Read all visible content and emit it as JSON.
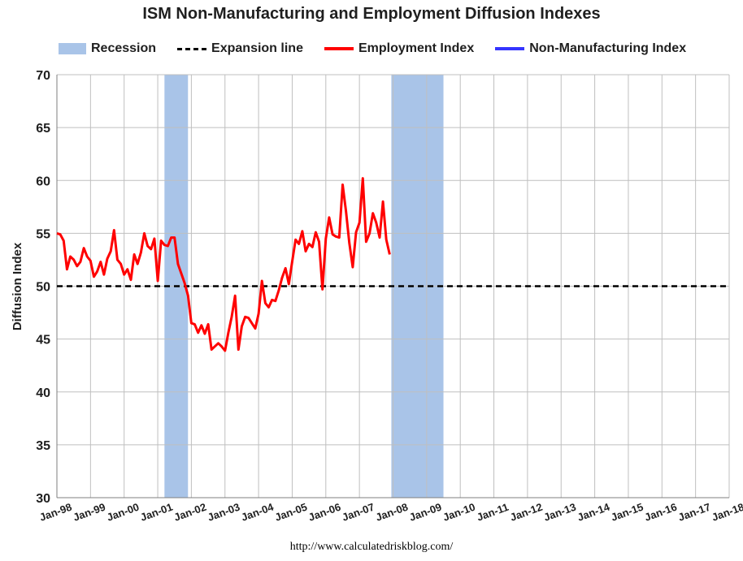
{
  "chart_data": {
    "type": "line",
    "title": "ISM Non-Manufacturing and Employment Diffusion Indexes",
    "ylabel": "Diffusion Index",
    "xlabel": "",
    "ylim": [
      30,
      70
    ],
    "yticks": [
      30,
      35,
      40,
      45,
      50,
      55,
      60,
      65,
      70
    ],
    "xlim": [
      1998.0,
      2018.0
    ],
    "xticks": [
      {
        "label": "Jan-98",
        "x": 1998.0
      },
      {
        "label": "Jan-99",
        "x": 1999.0
      },
      {
        "label": "Jan-00",
        "x": 2000.0
      },
      {
        "label": "Jan-01",
        "x": 2001.0
      },
      {
        "label": "Jan-02",
        "x": 2002.0
      },
      {
        "label": "Jan-03",
        "x": 2003.0
      },
      {
        "label": "Jan-04",
        "x": 2004.0
      },
      {
        "label": "Jan-05",
        "x": 2005.0
      },
      {
        "label": "Jan-06",
        "x": 2006.0
      },
      {
        "label": "Jan-07",
        "x": 2007.0
      },
      {
        "label": "Jan-08",
        "x": 2008.0
      },
      {
        "label": "Jan-09",
        "x": 2009.0
      },
      {
        "label": "Jan-10",
        "x": 2010.0
      },
      {
        "label": "Jan-11",
        "x": 2011.0
      },
      {
        "label": "Jan-12",
        "x": 2012.0
      },
      {
        "label": "Jan-13",
        "x": 2013.0
      },
      {
        "label": "Jan-14",
        "x": 2014.0
      },
      {
        "label": "Jan-15",
        "x": 2015.0
      },
      {
        "label": "Jan-16",
        "x": 2016.0
      },
      {
        "label": "Jan-17",
        "x": 2017.0
      },
      {
        "label": "Jan-18",
        "x": 2018.0
      }
    ],
    "grid": true,
    "legend": [
      {
        "name": "Recession",
        "style": "band",
        "color": "#a9c4e8"
      },
      {
        "name": "Expansion line",
        "style": "dashed",
        "color": "#000000"
      },
      {
        "name": "Employment Index",
        "style": "line",
        "color": "#ff0000"
      },
      {
        "name": "Non-Manufacturing Index",
        "style": "line",
        "color": "#3535ff"
      }
    ],
    "recessions": [
      {
        "start": 2001.2,
        "end": 2001.9
      },
      {
        "start": 2007.95,
        "end": 2009.5
      }
    ],
    "expansion_line": 50,
    "series": [
      {
        "name": "Employment Index",
        "color": "#ff0000",
        "points": [
          [
            1998.0,
            55.0
          ],
          [
            1998.1,
            54.9
          ],
          [
            1998.2,
            54.3
          ],
          [
            1998.3,
            51.6
          ],
          [
            1998.4,
            52.8
          ],
          [
            1998.5,
            52.5
          ],
          [
            1998.6,
            51.9
          ],
          [
            1998.7,
            52.3
          ],
          [
            1998.8,
            53.6
          ],
          [
            1998.9,
            52.8
          ],
          [
            1999.0,
            52.4
          ],
          [
            1999.1,
            50.9
          ],
          [
            1999.2,
            51.4
          ],
          [
            1999.3,
            52.3
          ],
          [
            1999.4,
            51.1
          ],
          [
            1999.5,
            52.6
          ],
          [
            1999.6,
            53.3
          ],
          [
            1999.7,
            55.3
          ],
          [
            1999.8,
            52.5
          ],
          [
            1999.9,
            52.1
          ],
          [
            2000.0,
            51.1
          ],
          [
            2000.1,
            51.6
          ],
          [
            2000.2,
            50.6
          ],
          [
            2000.3,
            53.0
          ],
          [
            2000.4,
            52.1
          ],
          [
            2000.5,
            53.2
          ],
          [
            2000.6,
            55.0
          ],
          [
            2000.7,
            53.8
          ],
          [
            2000.8,
            53.5
          ],
          [
            2000.9,
            54.5
          ],
          [
            2001.0,
            50.5
          ],
          [
            2001.1,
            54.3
          ],
          [
            2001.2,
            53.9
          ],
          [
            2001.3,
            53.8
          ],
          [
            2001.4,
            54.6
          ],
          [
            2001.5,
            54.6
          ],
          [
            2001.6,
            52.1
          ],
          [
            2001.7,
            51.2
          ],
          [
            2001.8,
            50.3
          ],
          [
            2001.9,
            49.1
          ],
          [
            2002.0,
            46.5
          ],
          [
            2002.1,
            46.4
          ],
          [
            2002.2,
            45.6
          ],
          [
            2002.3,
            46.3
          ],
          [
            2002.4,
            45.5
          ],
          [
            2002.5,
            46.4
          ],
          [
            2002.6,
            44.0
          ],
          [
            2002.7,
            44.3
          ],
          [
            2002.8,
            44.6
          ],
          [
            2002.9,
            44.3
          ],
          [
            2003.0,
            43.9
          ],
          [
            2003.1,
            45.6
          ],
          [
            2003.2,
            47.1
          ],
          [
            2003.3,
            49.1
          ],
          [
            2003.4,
            44.0
          ],
          [
            2003.5,
            46.2
          ],
          [
            2003.6,
            47.1
          ],
          [
            2003.7,
            47.0
          ],
          [
            2003.8,
            46.5
          ],
          [
            2003.9,
            46.0
          ],
          [
            2004.0,
            47.4
          ],
          [
            2004.1,
            50.5
          ],
          [
            2004.2,
            48.4
          ],
          [
            2004.3,
            48.0
          ],
          [
            2004.4,
            48.7
          ],
          [
            2004.5,
            48.6
          ],
          [
            2004.6,
            49.6
          ],
          [
            2004.7,
            50.8
          ],
          [
            2004.8,
            51.7
          ],
          [
            2004.9,
            50.2
          ],
          [
            2005.0,
            52.3
          ],
          [
            2005.1,
            54.4
          ],
          [
            2005.2,
            54.0
          ],
          [
            2005.3,
            55.2
          ],
          [
            2005.4,
            53.3
          ],
          [
            2005.5,
            54.0
          ],
          [
            2005.6,
            53.7
          ],
          [
            2005.7,
            55.1
          ],
          [
            2005.8,
            54.2
          ],
          [
            2005.9,
            49.7
          ],
          [
            2006.0,
            54.5
          ],
          [
            2006.1,
            56.5
          ],
          [
            2006.2,
            54.9
          ],
          [
            2006.3,
            54.7
          ],
          [
            2006.4,
            54.6
          ],
          [
            2006.5,
            59.6
          ],
          [
            2006.6,
            57.1
          ],
          [
            2006.7,
            54.1
          ],
          [
            2006.8,
            51.8
          ],
          [
            2006.9,
            55.1
          ],
          [
            2007.0,
            56.0
          ],
          [
            2007.1,
            60.2
          ],
          [
            2007.2,
            54.2
          ],
          [
            2007.3,
            55.0
          ],
          [
            2007.4,
            56.9
          ],
          [
            2007.5,
            56.0
          ],
          [
            2007.6,
            54.6
          ],
          [
            2007.7,
            58.0
          ],
          [
            2007.8,
            54.4
          ],
          [
            2007.9,
            53.0
          ]
        ]
      },
      {
        "name": "Non-Manufacturing Index",
        "color": "#3535ff",
        "points": []
      }
    ]
  },
  "footer": {
    "url": "http://www.calculatedriskblog.com/"
  }
}
